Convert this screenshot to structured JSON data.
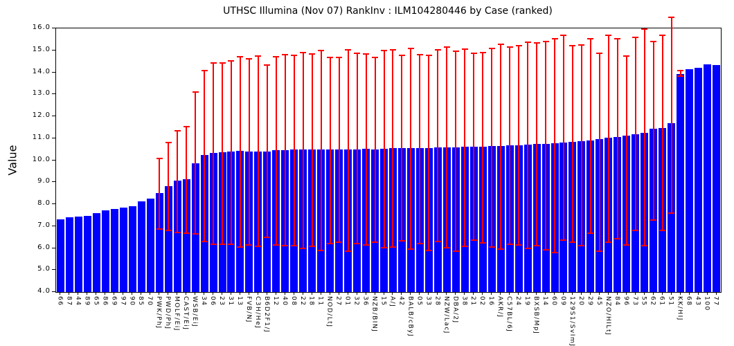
{
  "chart_data": {
    "type": "bar",
    "title": "UTHSC Illumina (Nov 07) RankInv : ILM104280446 by Case (ranked)",
    "xlabel": "",
    "ylabel": "Value",
    "ylim": [
      4.0,
      16.0
    ],
    "ytick_labels": [
      "4.0",
      "5.0",
      "6.0",
      "7.0",
      "8.0",
      "9.0",
      "10.0",
      "11.0",
      "12.0",
      "13.0",
      "14.0",
      "15.0",
      "16.0"
    ],
    "grid": false,
    "legend": "none",
    "bar_color": "#0000ff",
    "error_color": "#ff0000",
    "categories": [
      "66",
      "87",
      "44",
      "89",
      "65",
      "86",
      "69",
      "97",
      "90",
      "85",
      "70",
      "PWK/PhJ",
      "PWD/PhJ",
      "MOLF/EiJ",
      "CAST/EiJ",
      "WSB/EiJ",
      "34",
      "06",
      "23",
      "31",
      "13",
      "FVB/NJ",
      "C3H/HeJ",
      "B6D2F1/J",
      "12",
      "40",
      "08",
      "22",
      "18",
      "11",
      "NOD/LtJ",
      "27",
      "01",
      "32",
      "36",
      "NZB/BINJ",
      "15",
      "A/J",
      "42",
      "BALB/cByJ",
      "05",
      "33",
      "28",
      "NZW/LacJ",
      "DBA/2J",
      "38",
      "21",
      "02",
      "16",
      "AKR/J",
      "C57BL/6J",
      "24",
      "19",
      "BXSB/MpJ",
      "14",
      "60",
      "09",
      "129S1/SvImJ",
      "20",
      "29",
      "45",
      "NZO/HILtJ",
      "84",
      "96",
      "73",
      "55",
      "62",
      "61",
      "51",
      "KK/HIJ",
      "68",
      "43",
      "100",
      "77"
    ],
    "values": [
      7.31,
      7.39,
      7.42,
      7.45,
      7.6,
      7.71,
      7.78,
      7.83,
      7.9,
      8.13,
      8.25,
      8.51,
      8.83,
      9.07,
      9.13,
      9.86,
      10.23,
      10.33,
      10.35,
      10.38,
      10.43,
      10.38,
      10.38,
      10.4,
      10.46,
      10.46,
      10.48,
      10.48,
      10.48,
      10.48,
      10.48,
      10.5,
      10.5,
      10.5,
      10.52,
      10.5,
      10.52,
      10.54,
      10.54,
      10.56,
      10.56,
      10.56,
      10.58,
      10.58,
      10.58,
      10.61,
      10.61,
      10.61,
      10.65,
      10.65,
      10.67,
      10.67,
      10.7,
      10.73,
      10.73,
      10.76,
      10.8,
      10.83,
      10.86,
      10.9,
      10.96,
      11.02,
      11.07,
      11.12,
      11.18,
      11.25,
      11.42,
      11.48,
      11.7,
      13.92,
      14.13,
      14.2,
      14.35,
      14.33
    ],
    "error_low": [
      null,
      null,
      null,
      null,
      null,
      null,
      null,
      null,
      null,
      null,
      null,
      6.84,
      6.76,
      6.68,
      6.65,
      6.6,
      6.27,
      6.15,
      6.15,
      6.13,
      6.01,
      6.11,
      6.05,
      6.47,
      6.11,
      6.08,
      6.08,
      5.94,
      6.05,
      5.85,
      6.18,
      6.24,
      5.84,
      6.18,
      6.11,
      6.24,
      5.97,
      6.01,
      6.29,
      5.92,
      6.18,
      5.87,
      6.26,
      5.97,
      5.82,
      6.05,
      6.34,
      6.21,
      6.03,
      5.92,
      6.13,
      6.1,
      5.94,
      6.07,
      5.9,
      5.76,
      6.32,
      6.24,
      6.08,
      6.64,
      5.84,
      6.24,
      6.39,
      6.11,
      6.78,
      6.08,
      7.25,
      6.78,
      7.55,
      13.8,
      null,
      null,
      null,
      null
    ],
    "error_high": [
      null,
      null,
      null,
      null,
      null,
      null,
      null,
      null,
      null,
      null,
      null,
      10.12,
      10.83,
      11.37,
      11.56,
      13.13,
      14.11,
      14.46,
      14.46,
      14.55,
      14.74,
      14.65,
      14.77,
      14.36,
      14.74,
      14.83,
      14.8,
      14.93,
      14.87,
      15.02,
      14.71,
      14.71,
      15.06,
      14.9,
      14.87,
      14.71,
      15.02,
      15.06,
      14.8,
      15.12,
      14.83,
      14.8,
      15.06,
      15.18,
      14.99,
      15.09,
      14.9,
      14.93,
      15.12,
      15.31,
      15.18,
      15.24,
      15.4,
      15.37,
      15.43,
      15.56,
      15.72,
      15.24,
      15.28,
      15.56,
      14.9,
      15.72,
      15.56,
      14.78,
      15.63,
      16.0,
      15.42,
      15.72,
      16.55,
      14.1,
      null,
      null,
      null,
      null
    ]
  }
}
